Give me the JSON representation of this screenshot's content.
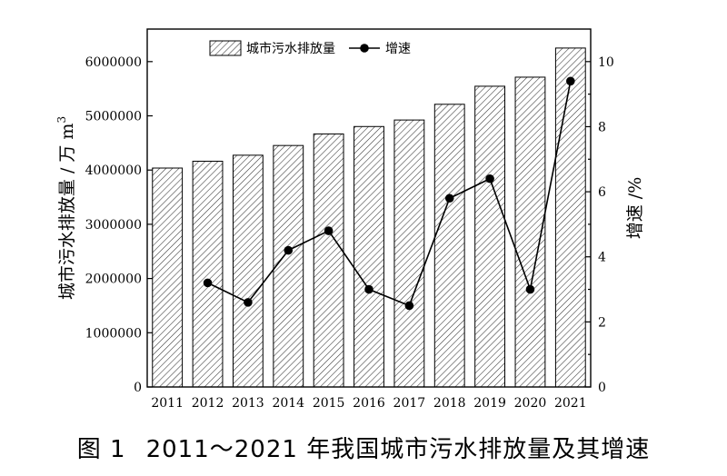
{
  "caption": {
    "figure_number": "图 1",
    "text": "2011～2021 年我国城市污水排放量及其增速"
  },
  "chart_data": {
    "type": "bar",
    "categories": [
      "2011",
      "2012",
      "2013",
      "2014",
      "2015",
      "2016",
      "2017",
      "2018",
      "2019",
      "2020",
      "2021"
    ],
    "series": [
      {
        "name": "城市污水排放量",
        "type": "bar",
        "axis": "left",
        "pattern": "diagonal-hatch",
        "values": [
          4037000,
          4163000,
          4274000,
          4453000,
          4666000,
          4803000,
          4923000,
          5213000,
          5546000,
          5713000,
          6250000
        ]
      },
      {
        "name": "增速",
        "type": "line",
        "axis": "right",
        "marker": "filled-circle",
        "values": [
          null,
          3.2,
          2.6,
          4.2,
          4.8,
          3.0,
          2.5,
          5.8,
          6.4,
          3.0,
          9.4
        ]
      }
    ],
    "left_axis": {
      "label": "城市污水排放量 / 万 m³",
      "label_main": "城市污水排放量 / 万 m",
      "label_sup": "3",
      "ylim": [
        0,
        6600000
      ],
      "ticks": [
        "0",
        "1000000",
        "2000000",
        "3000000",
        "4000000",
        "5000000",
        "6000000"
      ]
    },
    "right_axis": {
      "label": "增速 /%",
      "ylim": [
        0,
        11
      ],
      "ticks": [
        "0",
        "2",
        "4",
        "6",
        "8",
        "10"
      ]
    },
    "legend": {
      "position": "top-center",
      "entries": [
        "城市污水排放量",
        "增速"
      ]
    },
    "grid": false,
    "colors": {
      "bar_fill": "#ffffff",
      "bar_hatch": "#222222",
      "line": "#000000",
      "axis": "#000000"
    }
  }
}
